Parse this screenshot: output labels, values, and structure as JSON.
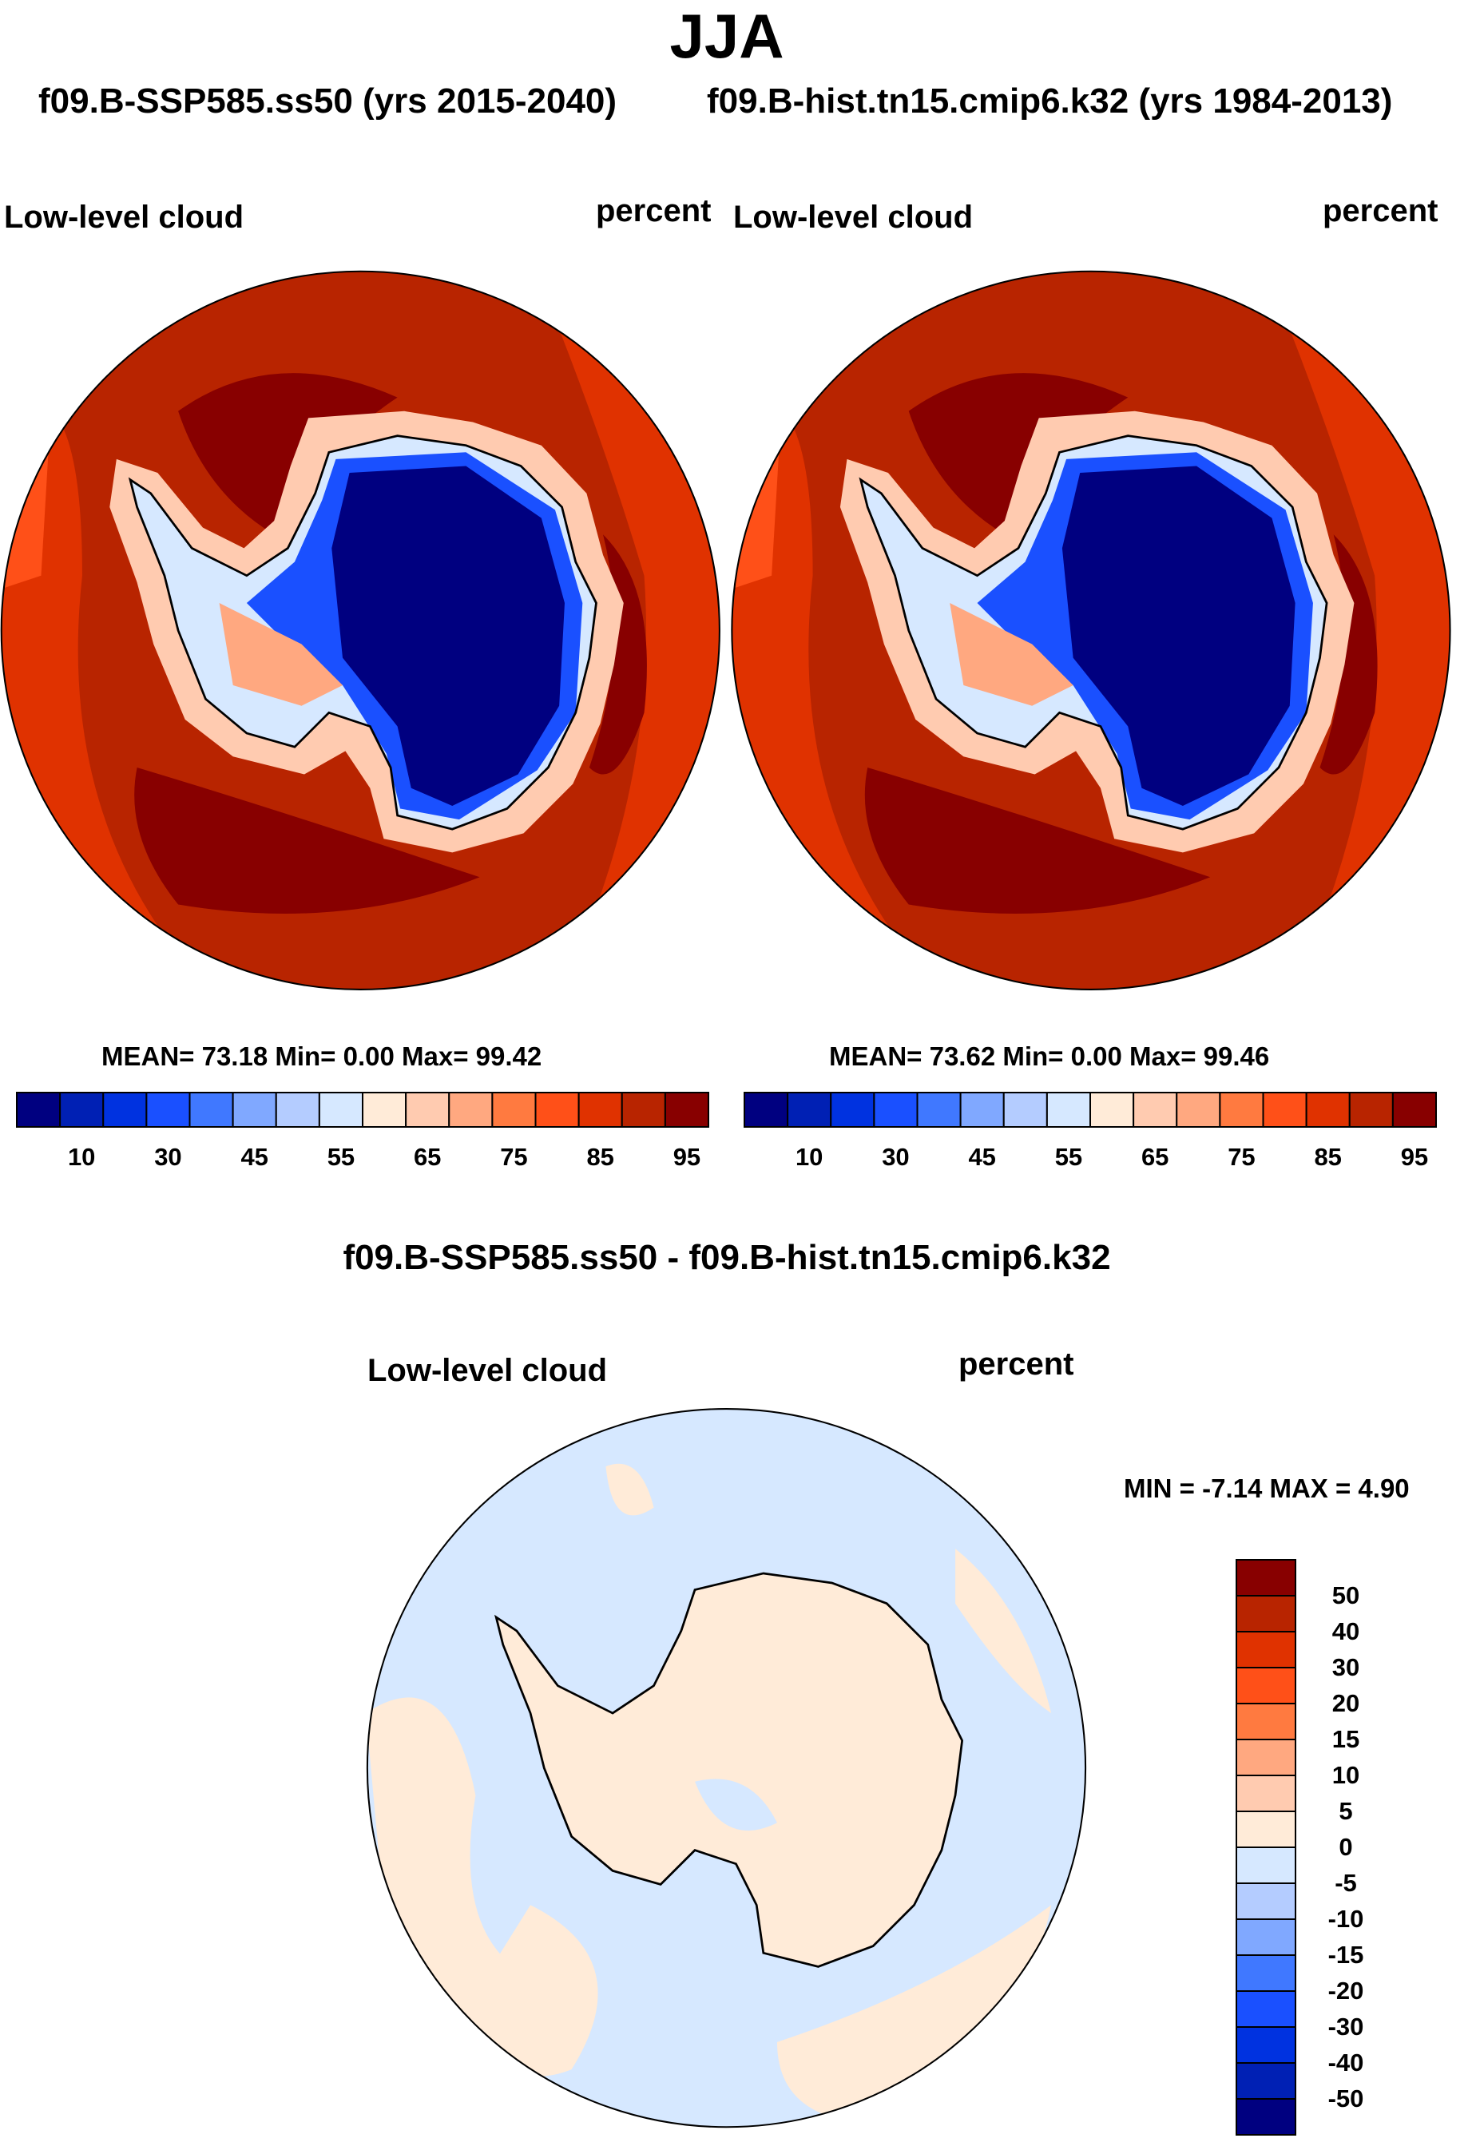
{
  "title": "JJA",
  "subtitles": [
    "f09.B-SSP585.ss50 (yrs 2015-2040)",
    "f09.B-hist.tn15.cmip6.k32 (yrs 1984-2013)"
  ],
  "panels": [
    {
      "variable": "Low-level cloud",
      "units": "percent",
      "stats": "MEAN=  73.18  Min=   0.00  Max=  99.42"
    },
    {
      "variable": "Low-level cloud",
      "units": "percent",
      "stats": "MEAN=  73.62  Min=   0.00  Max=  99.46"
    }
  ],
  "diff": {
    "title": "f09.B-SSP585.ss50 - f09.B-hist.tn15.cmip6.k32",
    "variable": "Low-level cloud",
    "units": "percent",
    "stats": "MIN =  -7.14 MAX =    4.90"
  },
  "chart_data": [
    {
      "type": "heatmap",
      "title": "Low-level cloud (f09.B-SSP585.ss50)",
      "units": "percent",
      "projection": "south polar stereographic",
      "mean": 73.18,
      "min": 0.0,
      "max": 99.42,
      "colorbar_ticks": [
        "10",
        "30",
        "45",
        "55",
        "65",
        "75",
        "85",
        "95"
      ]
    },
    {
      "type": "heatmap",
      "title": "Low-level cloud (f09.B-hist.tn15.cmip6.k32)",
      "units": "percent",
      "projection": "south polar stereographic",
      "mean": 73.62,
      "min": 0.0,
      "max": 99.46,
      "colorbar_ticks": [
        "10",
        "30",
        "45",
        "55",
        "65",
        "75",
        "85",
        "95"
      ]
    },
    {
      "type": "heatmap",
      "title": "Low-level cloud difference",
      "units": "percent",
      "min": -7.14,
      "max": 4.9,
      "colorbar_ticks": [
        "50",
        "40",
        "30",
        "20",
        "15",
        "10",
        "5",
        "0",
        "-5",
        "-10",
        "-15",
        "-20",
        "-30",
        "-40",
        "-50"
      ]
    }
  ],
  "colors": [
    "#000080",
    "#0020b4",
    "#0032e0",
    "#1a50ff",
    "#4078ff",
    "#80a8ff",
    "#b4ccff",
    "#d6e8ff",
    "#ffebd8",
    "#ffcbb0",
    "#ffa880",
    "#ff7a40",
    "#ff5018",
    "#e03200",
    "#b82400",
    "#880000"
  ]
}
